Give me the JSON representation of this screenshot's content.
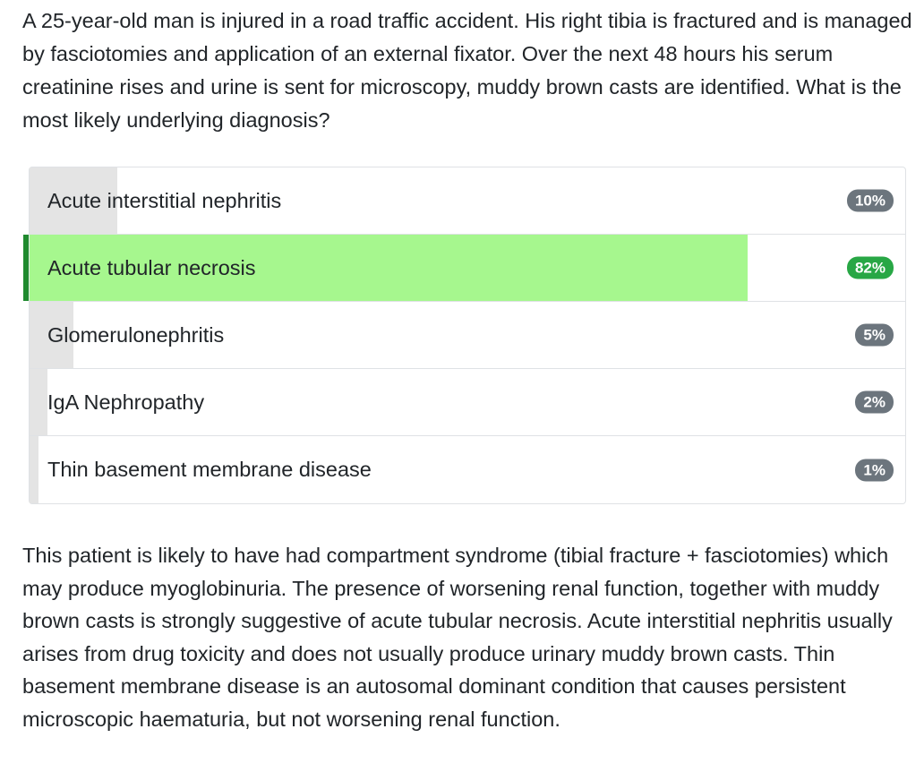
{
  "question": "A 25-year-old man is injured in a road traffic accident. His right tibia is fractured and is managed by fasciotomies and application of an external fixator. Over the next 48 hours his serum creatinine rises and urine is sent for microscopy, muddy brown casts are identified. What is the most likely underlying diagnosis?",
  "options": [
    {
      "label": "Acute interstitial nephritis",
      "percent_label": "10%",
      "percent": 10,
      "correct": false
    },
    {
      "label": "Acute tubular necrosis",
      "percent_label": "82%",
      "percent": 82,
      "correct": true
    },
    {
      "label": "Glomerulonephritis",
      "percent_label": "5%",
      "percent": 5,
      "correct": false
    },
    {
      "label": "IgA Nephropathy",
      "percent_label": "2%",
      "percent": 2,
      "correct": false
    },
    {
      "label": "Thin basement membrane disease",
      "percent_label": "1%",
      "percent": 1,
      "correct": false
    }
  ],
  "explanation": "This patient is likely to have had compartment syndrome (tibial fracture + fasciotomies) which may produce myoglobinuria. The presence of worsening renal function, together with muddy brown casts is strongly suggestive of acute tubular necrosis. Acute interstitial nephritis usually arises from drug toxicity and does not usually produce urinary muddy brown casts. Thin basement membrane disease is an autosomal dominant condition that causes persistent microscopic haematuria, but not worsening renal function.",
  "colors": {
    "correct_bar": "#a6f78e",
    "correct_accent": "#1f8a2e",
    "correct_badge": "#28a745",
    "neutral_bar": "#e4e4e4",
    "neutral_badge": "#6c757d"
  }
}
